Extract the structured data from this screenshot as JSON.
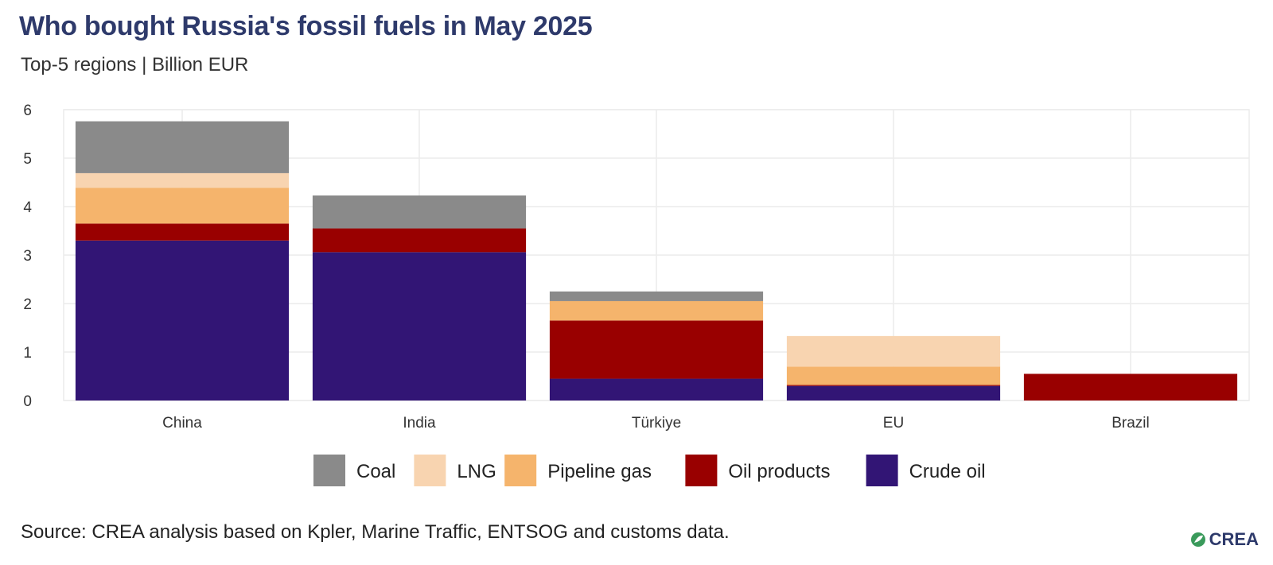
{
  "title": "Who bought Russia's fossil fuels in May 2025",
  "subtitle": "Top-5 regions | Billion EUR",
  "source": "Source: CREA analysis based on Kpler, Marine Traffic, ENTSOG and customs data.",
  "logo_text": "CREA",
  "colors": {
    "Coal": "#8a8a8a",
    "LNG": "#f8d4b0",
    "Pipeline gas": "#f5b46c",
    "Oil products": "#990000",
    "Crude oil": "#321575"
  },
  "chart_data": {
    "type": "bar",
    "stacked": true,
    "categories": [
      "China",
      "India",
      "Türkiye",
      "EU",
      "Brazil"
    ],
    "series": [
      {
        "name": "Crude oil",
        "values": [
          3.3,
          3.06,
          0.45,
          0.3,
          0.0
        ]
      },
      {
        "name": "Oil products",
        "values": [
          0.35,
          0.49,
          1.2,
          0.02,
          0.55
        ]
      },
      {
        "name": "Pipeline gas",
        "values": [
          0.74,
          0.0,
          0.4,
          0.38,
          0.0
        ]
      },
      {
        "name": "LNG",
        "values": [
          0.3,
          0.0,
          0.0,
          0.63,
          0.0
        ]
      },
      {
        "name": "Coal",
        "values": [
          1.07,
          0.68,
          0.2,
          0.0,
          0.0
        ]
      }
    ],
    "legend_order": [
      "Coal",
      "LNG",
      "Pipeline gas",
      "Oil products",
      "Crude oil"
    ],
    "y_ticks": [
      0,
      1,
      2,
      3,
      4,
      5,
      6
    ],
    "ylim": [
      0,
      6
    ],
    "grid": true,
    "legend_position": "bottom"
  }
}
